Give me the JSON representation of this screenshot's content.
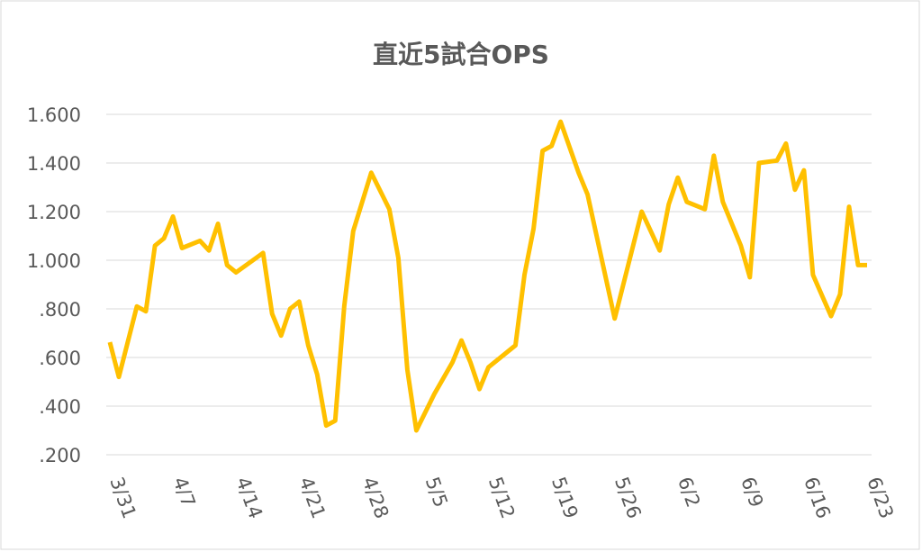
{
  "chart_data": {
    "type": "line",
    "title": "直近5試合OPS",
    "x": [
      "3/31",
      "4/1",
      "4/3",
      "4/4",
      "4/5",
      "4/6",
      "4/7",
      "4/8",
      "4/10",
      "4/11",
      "4/12",
      "4/13",
      "4/14",
      "4/17",
      "4/18",
      "4/19",
      "4/20",
      "4/21",
      "4/22",
      "4/23",
      "4/24",
      "4/25",
      "4/26",
      "4/27",
      "4/29",
      "5/1",
      "5/2",
      "5/3",
      "5/4",
      "5/6",
      "5/8",
      "5/9",
      "5/10",
      "5/11",
      "5/12",
      "5/15",
      "5/16",
      "5/17",
      "5/18",
      "5/19",
      "5/20",
      "5/22",
      "5/23",
      "5/26",
      "5/29",
      "5/31",
      "6/1",
      "6/2",
      "6/3",
      "6/5",
      "6/6",
      "6/7",
      "6/9",
      "6/10",
      "6/11",
      "6/13",
      "6/14",
      "6/15",
      "6/16",
      "6/17",
      "6/19",
      "6/20",
      "6/21",
      "6/22",
      "6/23"
    ],
    "series": [
      {
        "name": "OPS",
        "color": "#ffc000",
        "values": [
          0.663,
          0.52,
          0.81,
          0.79,
          1.06,
          1.09,
          1.18,
          1.05,
          1.08,
          1.04,
          1.15,
          0.98,
          0.95,
          1.03,
          0.78,
          0.69,
          0.8,
          0.83,
          0.65,
          0.53,
          0.32,
          0.34,
          0.81,
          1.12,
          1.36,
          1.21,
          1.01,
          0.55,
          0.3,
          0.45,
          0.58,
          0.67,
          0.58,
          0.47,
          0.56,
          0.65,
          0.94,
          1.13,
          1.45,
          1.47,
          1.57,
          1.36,
          1.27,
          0.76,
          1.2,
          1.04,
          1.23,
          1.34,
          1.24,
          1.21,
          1.43,
          1.24,
          1.06,
          0.93,
          1.4,
          1.41,
          1.48,
          1.29,
          1.37,
          0.94,
          0.77,
          0.86,
          1.22,
          0.98,
          0.98
        ]
      }
    ],
    "xticks": [
      "3/31",
      "4/7",
      "4/14",
      "4/21",
      "4/28",
      "5/5",
      "5/12",
      "5/19",
      "5/26",
      "6/2",
      "6/9",
      "6/16",
      "6/23"
    ],
    "ylim": [
      0.2,
      1.6
    ],
    "yticks": [
      {
        "value": 0.2,
        "label": ".200"
      },
      {
        "value": 0.4,
        "label": ".400"
      },
      {
        "value": 0.6,
        "label": ".600"
      },
      {
        "value": 0.8,
        "label": ".800"
      },
      {
        "value": 1,
        "label": "1.000"
      },
      {
        "value": 1.2,
        "label": "1.200"
      },
      {
        "value": 1.4,
        "label": "1.400"
      },
      {
        "value": 1.6,
        "label": "1.600"
      }
    ],
    "grid": true
  }
}
